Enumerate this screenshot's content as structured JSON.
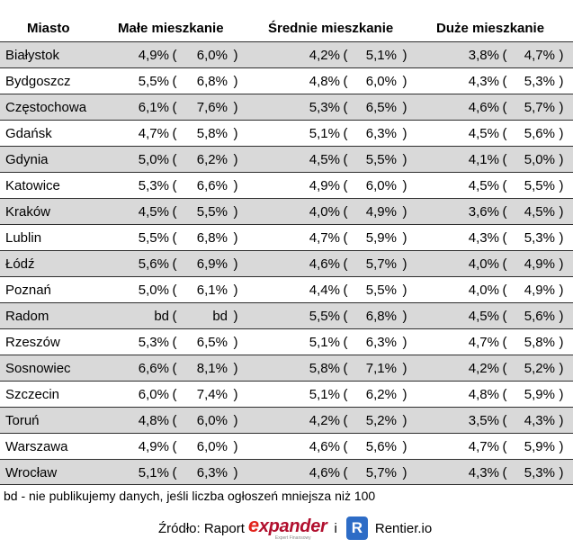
{
  "headers": {
    "city": "Miasto",
    "small": "Małe mieszkanie",
    "medium": "Średnie mieszkanie",
    "large": "Duże mieszkanie"
  },
  "paren_open": "(",
  "paren_close": ")",
  "rows": [
    {
      "city": "Białystok",
      "s1": "4,9%",
      "s2": "6,0%",
      "m1": "4,2%",
      "m2": "5,1%",
      "l1": "3,8%",
      "l2": "4,7%"
    },
    {
      "city": "Bydgoszcz",
      "s1": "5,5%",
      "s2": "6,8%",
      "m1": "4,8%",
      "m2": "6,0%",
      "l1": "4,3%",
      "l2": "5,3%"
    },
    {
      "city": "Częstochowa",
      "s1": "6,1%",
      "s2": "7,6%",
      "m1": "5,3%",
      "m2": "6,5%",
      "l1": "4,6%",
      "l2": "5,7%"
    },
    {
      "city": "Gdańsk",
      "s1": "4,7%",
      "s2": "5,8%",
      "m1": "5,1%",
      "m2": "6,3%",
      "l1": "4,5%",
      "l2": "5,6%"
    },
    {
      "city": "Gdynia",
      "s1": "5,0%",
      "s2": "6,2%",
      "m1": "4,5%",
      "m2": "5,5%",
      "l1": "4,1%",
      "l2": "5,0%"
    },
    {
      "city": "Katowice",
      "s1": "5,3%",
      "s2": "6,6%",
      "m1": "4,9%",
      "m2": "6,0%",
      "l1": "4,5%",
      "l2": "5,5%"
    },
    {
      "city": "Kraków",
      "s1": "4,5%",
      "s2": "5,5%",
      "m1": "4,0%",
      "m2": "4,9%",
      "l1": "3,6%",
      "l2": "4,5%"
    },
    {
      "city": "Lublin",
      "s1": "5,5%",
      "s2": "6,8%",
      "m1": "4,7%",
      "m2": "5,9%",
      "l1": "4,3%",
      "l2": "5,3%"
    },
    {
      "city": "Łódź",
      "s1": "5,6%",
      "s2": "6,9%",
      "m1": "4,6%",
      "m2": "5,7%",
      "l1": "4,0%",
      "l2": "4,9%"
    },
    {
      "city": "Poznań",
      "s1": "5,0%",
      "s2": "6,1%",
      "m1": "4,4%",
      "m2": "5,5%",
      "l1": "4,0%",
      "l2": "4,9%"
    },
    {
      "city": "Radom",
      "s1": "bd",
      "s2": "bd",
      "m1": "5,5%",
      "m2": "6,8%",
      "l1": "4,5%",
      "l2": "5,6%"
    },
    {
      "city": "Rzeszów",
      "s1": "5,3%",
      "s2": "6,5%",
      "m1": "5,1%",
      "m2": "6,3%",
      "l1": "4,7%",
      "l2": "5,8%"
    },
    {
      "city": "Sosnowiec",
      "s1": "6,6%",
      "s2": "8,1%",
      "m1": "5,8%",
      "m2": "7,1%",
      "l1": "4,2%",
      "l2": "5,2%"
    },
    {
      "city": "Szczecin",
      "s1": "6,0%",
      "s2": "7,4%",
      "m1": "5,1%",
      "m2": "6,2%",
      "l1": "4,8%",
      "l2": "5,9%"
    },
    {
      "city": "Toruń",
      "s1": "4,8%",
      "s2": "6,0%",
      "m1": "4,2%",
      "m2": "5,2%",
      "l1": "3,5%",
      "l2": "4,3%"
    },
    {
      "city": "Warszawa",
      "s1": "4,9%",
      "s2": "6,0%",
      "m1": "4,6%",
      "m2": "5,6%",
      "l1": "4,7%",
      "l2": "5,9%"
    },
    {
      "city": "Wrocław",
      "s1": "5,1%",
      "s2": "6,3%",
      "m1": "4,6%",
      "m2": "5,7%",
      "l1": "4,3%",
      "l2": "5,3%"
    }
  ],
  "note": "bd - nie publikujemy danych, jeśli liczba ogłoszeń mniejsza niż 100",
  "source": {
    "label": "Źródło: Raport",
    "brand_e": "e",
    "brand_rest": "xpander",
    "brand_sub": "Expert Finansowy",
    "conjunction": "i",
    "logo_letter": "R",
    "site": "Rentier.io"
  }
}
